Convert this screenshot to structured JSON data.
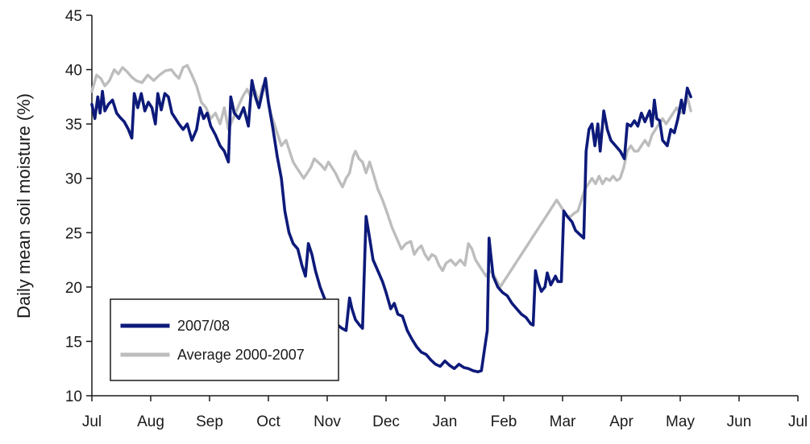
{
  "chart_data": {
    "type": "line",
    "title": "",
    "xlabel": "",
    "ylabel": "Daily mean soil moisture (%)",
    "ylim": [
      10,
      45
    ],
    "yticks": [
      10,
      15,
      20,
      25,
      30,
      35,
      40,
      45
    ],
    "xlim": [
      0,
      12
    ],
    "month_ticks": [
      "Jul",
      "Aug",
      "Sep",
      "Oct",
      "Nov",
      "Dec",
      "Jan",
      "Feb",
      "Mar",
      "Apr",
      "May",
      "Jun",
      "Jul"
    ],
    "grid": false,
    "legend_position": "bottom-left",
    "series": [
      {
        "name": "2007/08",
        "color": "#0d1a7a",
        "points": [
          [
            0.0,
            36.8
          ],
          [
            0.05,
            35.5
          ],
          [
            0.1,
            37.5
          ],
          [
            0.14,
            36.0
          ],
          [
            0.18,
            38.0
          ],
          [
            0.22,
            36.2
          ],
          [
            0.28,
            36.8
          ],
          [
            0.35,
            37.2
          ],
          [
            0.42,
            36.0
          ],
          [
            0.48,
            35.6
          ],
          [
            0.55,
            35.2
          ],
          [
            0.62,
            34.5
          ],
          [
            0.68,
            33.7
          ],
          [
            0.72,
            37.8
          ],
          [
            0.78,
            36.5
          ],
          [
            0.84,
            37.8
          ],
          [
            0.9,
            36.2
          ],
          [
            0.96,
            37.0
          ],
          [
            1.02,
            36.5
          ],
          [
            1.08,
            35.0
          ],
          [
            1.12,
            37.8
          ],
          [
            1.18,
            36.3
          ],
          [
            1.24,
            37.8
          ],
          [
            1.3,
            37.5
          ],
          [
            1.36,
            36.0
          ],
          [
            1.42,
            35.5
          ],
          [
            1.48,
            35.0
          ],
          [
            1.55,
            34.5
          ],
          [
            1.62,
            35.0
          ],
          [
            1.7,
            33.5
          ],
          [
            1.78,
            34.5
          ],
          [
            1.84,
            36.5
          ],
          [
            1.9,
            35.5
          ],
          [
            1.96,
            36.0
          ],
          [
            2.02,
            34.8
          ],
          [
            2.1,
            34.0
          ],
          [
            2.18,
            33.0
          ],
          [
            2.25,
            32.5
          ],
          [
            2.32,
            31.5
          ],
          [
            2.36,
            37.5
          ],
          [
            2.42,
            36.0
          ],
          [
            2.5,
            35.5
          ],
          [
            2.58,
            36.5
          ],
          [
            2.66,
            34.8
          ],
          [
            2.72,
            39.0
          ],
          [
            2.78,
            37.5
          ],
          [
            2.84,
            36.5
          ],
          [
            2.9,
            38.0
          ],
          [
            2.95,
            39.2
          ],
          [
            3.0,
            37.0
          ],
          [
            3.08,
            34.5
          ],
          [
            3.15,
            32.0
          ],
          [
            3.22,
            30.0
          ],
          [
            3.28,
            27.0
          ],
          [
            3.35,
            25.0
          ],
          [
            3.42,
            24.0
          ],
          [
            3.5,
            23.5
          ],
          [
            3.57,
            22.0
          ],
          [
            3.63,
            21.0
          ],
          [
            3.68,
            24.0
          ],
          [
            3.74,
            23.0
          ],
          [
            3.8,
            21.5
          ],
          [
            3.88,
            20.0
          ],
          [
            3.95,
            19.0
          ],
          [
            4.02,
            18.0
          ],
          [
            4.1,
            17.2
          ],
          [
            4.18,
            16.5
          ],
          [
            4.25,
            16.2
          ],
          [
            4.32,
            16.0
          ],
          [
            4.38,
            19.0
          ],
          [
            4.42,
            18.0
          ],
          [
            4.48,
            17.0
          ],
          [
            4.55,
            16.5
          ],
          [
            4.6,
            16.2
          ],
          [
            4.66,
            26.5
          ],
          [
            4.72,
            24.5
          ],
          [
            4.78,
            22.5
          ],
          [
            4.86,
            21.5
          ],
          [
            4.94,
            20.5
          ],
          [
            5.0,
            19.5
          ],
          [
            5.08,
            18.0
          ],
          [
            5.14,
            18.5
          ],
          [
            5.2,
            17.5
          ],
          [
            5.28,
            17.3
          ],
          [
            5.36,
            16.0
          ],
          [
            5.44,
            15.2
          ],
          [
            5.52,
            14.5
          ],
          [
            5.6,
            14.0
          ],
          [
            5.68,
            13.8
          ],
          [
            5.76,
            13.3
          ],
          [
            5.84,
            12.9
          ],
          [
            5.92,
            12.7
          ],
          [
            6.0,
            13.2
          ],
          [
            6.08,
            12.8
          ],
          [
            6.16,
            12.5
          ],
          [
            6.24,
            12.9
          ],
          [
            6.32,
            12.6
          ],
          [
            6.4,
            12.5
          ],
          [
            6.48,
            12.3
          ],
          [
            6.56,
            12.2
          ],
          [
            6.62,
            12.3
          ],
          [
            6.68,
            14.5
          ],
          [
            6.72,
            16.0
          ],
          [
            6.75,
            24.5
          ],
          [
            6.78,
            23.0
          ],
          [
            6.82,
            21.0
          ],
          [
            6.9,
            20.0
          ],
          [
            6.98,
            19.5
          ],
          [
            7.06,
            19.2
          ],
          [
            7.14,
            18.5
          ],
          [
            7.22,
            18.0
          ],
          [
            7.3,
            17.5
          ],
          [
            7.38,
            17.2
          ],
          [
            7.46,
            16.6
          ],
          [
            7.5,
            16.5
          ],
          [
            7.54,
            21.5
          ],
          [
            7.58,
            20.5
          ],
          [
            7.64,
            19.6
          ],
          [
            7.7,
            20.0
          ],
          [
            7.74,
            21.3
          ],
          [
            7.8,
            20.2
          ],
          [
            7.88,
            21.0
          ],
          [
            7.92,
            20.5
          ],
          [
            7.98,
            20.5
          ],
          [
            8.02,
            27.0
          ],
          [
            8.08,
            26.5
          ],
          [
            8.16,
            26.0
          ],
          [
            8.22,
            25.2
          ],
          [
            8.3,
            24.8
          ],
          [
            8.36,
            24.5
          ],
          [
            8.4,
            32.5
          ],
          [
            8.45,
            34.5
          ],
          [
            8.5,
            35.0
          ],
          [
            8.55,
            33.0
          ],
          [
            8.6,
            35.0
          ],
          [
            8.64,
            32.5
          ],
          [
            8.7,
            36.2
          ],
          [
            8.76,
            34.5
          ],
          [
            8.82,
            33.5
          ],
          [
            8.9,
            33.0
          ],
          [
            8.98,
            32.5
          ],
          [
            9.05,
            31.8
          ],
          [
            9.1,
            35.0
          ],
          [
            9.16,
            34.8
          ],
          [
            9.22,
            35.3
          ],
          [
            9.28,
            34.8
          ],
          [
            9.34,
            36.0
          ],
          [
            9.4,
            35.2
          ],
          [
            9.48,
            36.2
          ],
          [
            9.52,
            34.8
          ],
          [
            9.56,
            37.2
          ],
          [
            9.6,
            35.5
          ],
          [
            9.65,
            35.3
          ],
          [
            9.7,
            33.5
          ],
          [
            9.78,
            33.0
          ],
          [
            9.84,
            34.5
          ],
          [
            9.9,
            34.2
          ],
          [
            9.96,
            35.5
          ],
          [
            10.02,
            37.2
          ],
          [
            10.06,
            36.0
          ],
          [
            10.12,
            38.3
          ],
          [
            10.18,
            37.5
          ]
        ]
      },
      {
        "name": "Average 2000-2007",
        "color": "#bdbdbd",
        "points": [
          [
            0.0,
            38.0
          ],
          [
            0.08,
            39.5
          ],
          [
            0.15,
            39.2
          ],
          [
            0.22,
            38.5
          ],
          [
            0.3,
            39.0
          ],
          [
            0.38,
            40.0
          ],
          [
            0.45,
            39.6
          ],
          [
            0.52,
            40.2
          ],
          [
            0.6,
            39.8
          ],
          [
            0.68,
            39.3
          ],
          [
            0.75,
            39.0
          ],
          [
            0.85,
            38.8
          ],
          [
            0.95,
            39.5
          ],
          [
            1.05,
            39.0
          ],
          [
            1.15,
            39.5
          ],
          [
            1.25,
            39.9
          ],
          [
            1.35,
            40.0
          ],
          [
            1.42,
            39.5
          ],
          [
            1.48,
            39.2
          ],
          [
            1.55,
            40.2
          ],
          [
            1.62,
            40.4
          ],
          [
            1.7,
            39.5
          ],
          [
            1.78,
            38.5
          ],
          [
            1.86,
            37.0
          ],
          [
            1.94,
            36.5
          ],
          [
            2.02,
            35.5
          ],
          [
            2.1,
            36.0
          ],
          [
            2.18,
            35.0
          ],
          [
            2.25,
            36.5
          ],
          [
            2.32,
            34.5
          ],
          [
            2.4,
            35.5
          ],
          [
            2.48,
            36.5
          ],
          [
            2.56,
            37.5
          ],
          [
            2.64,
            38.2
          ],
          [
            2.7,
            37.5
          ],
          [
            2.78,
            38.0
          ],
          [
            2.84,
            37.0
          ],
          [
            2.9,
            38.5
          ],
          [
            2.96,
            38.0
          ],
          [
            3.04,
            36.0
          ],
          [
            3.1,
            35.0
          ],
          [
            3.16,
            34.0
          ],
          [
            3.22,
            33.0
          ],
          [
            3.3,
            33.5
          ],
          [
            3.36,
            32.5
          ],
          [
            3.42,
            31.5
          ],
          [
            3.48,
            31.0
          ],
          [
            3.54,
            30.5
          ],
          [
            3.6,
            30.0
          ],
          [
            3.66,
            30.5
          ],
          [
            3.72,
            31.0
          ],
          [
            3.78,
            31.8
          ],
          [
            3.84,
            31.5
          ],
          [
            3.9,
            31.2
          ],
          [
            3.96,
            30.8
          ],
          [
            4.02,
            31.5
          ],
          [
            4.08,
            31.0
          ],
          [
            4.14,
            30.5
          ],
          [
            4.2,
            29.8
          ],
          [
            4.26,
            29.2
          ],
          [
            4.32,
            30.0
          ],
          [
            4.38,
            30.5
          ],
          [
            4.44,
            32.0
          ],
          [
            4.48,
            32.5
          ],
          [
            4.54,
            31.8
          ],
          [
            4.6,
            31.5
          ],
          [
            4.66,
            30.5
          ],
          [
            4.72,
            31.5
          ],
          [
            4.78,
            30.5
          ],
          [
            4.86,
            29.0
          ],
          [
            4.94,
            28.0
          ],
          [
            5.02,
            26.8
          ],
          [
            5.1,
            25.5
          ],
          [
            5.18,
            24.5
          ],
          [
            5.26,
            23.5
          ],
          [
            5.34,
            24.0
          ],
          [
            5.42,
            24.2
          ],
          [
            5.48,
            23.0
          ],
          [
            5.54,
            23.5
          ],
          [
            5.6,
            23.8
          ],
          [
            5.66,
            23.0
          ],
          [
            5.72,
            22.5
          ],
          [
            5.78,
            23.0
          ],
          [
            5.84,
            22.8
          ],
          [
            5.9,
            22.0
          ],
          [
            5.96,
            21.5
          ],
          [
            6.02,
            22.2
          ],
          [
            6.1,
            22.5
          ],
          [
            6.18,
            22.0
          ],
          [
            6.26,
            22.5
          ],
          [
            6.34,
            22.0
          ],
          [
            6.4,
            24.0
          ],
          [
            6.46,
            23.5
          ],
          [
            6.52,
            22.5
          ],
          [
            6.58,
            22.0
          ],
          [
            6.64,
            21.5
          ],
          [
            6.7,
            21.0
          ],
          [
            6.76,
            21.5
          ],
          [
            6.82,
            21.2
          ],
          [
            6.88,
            20.6
          ],
          [
            6.94,
            20.0
          ],
          [
            7.0,
            20.5
          ],
          [
            7.06,
            21.0
          ],
          [
            7.12,
            21.5
          ],
          [
            7.18,
            22.0
          ],
          [
            7.24,
            22.5
          ],
          [
            7.3,
            23.0
          ],
          [
            7.36,
            23.5
          ],
          [
            7.42,
            24.0
          ],
          [
            7.48,
            24.5
          ],
          [
            7.54,
            25.0
          ],
          [
            7.6,
            25.5
          ],
          [
            7.66,
            26.0
          ],
          [
            7.72,
            26.5
          ],
          [
            7.78,
            27.0
          ],
          [
            7.84,
            27.5
          ],
          [
            7.9,
            28.0
          ],
          [
            7.96,
            27.5
          ],
          [
            8.02,
            27.0
          ],
          [
            8.08,
            26.5
          ],
          [
            8.14,
            26.5
          ],
          [
            8.2,
            26.8
          ],
          [
            8.26,
            27.0
          ],
          [
            8.32,
            28.0
          ],
          [
            8.38,
            29.0
          ],
          [
            8.44,
            29.5
          ],
          [
            8.5,
            30.0
          ],
          [
            8.56,
            29.5
          ],
          [
            8.62,
            30.2
          ],
          [
            8.68,
            29.5
          ],
          [
            8.74,
            30.0
          ],
          [
            8.8,
            29.8
          ],
          [
            8.86,
            30.2
          ],
          [
            8.92,
            29.8
          ],
          [
            8.98,
            30.0
          ],
          [
            9.04,
            31.0
          ],
          [
            9.1,
            32.5
          ],
          [
            9.16,
            33.0
          ],
          [
            9.22,
            32.5
          ],
          [
            9.28,
            32.5
          ],
          [
            9.34,
            33.0
          ],
          [
            9.4,
            33.5
          ],
          [
            9.46,
            33.0
          ],
          [
            9.52,
            34.0
          ],
          [
            9.58,
            34.5
          ],
          [
            9.64,
            35.0
          ],
          [
            9.7,
            35.5
          ],
          [
            9.76,
            35.0
          ],
          [
            9.82,
            35.5
          ],
          [
            9.88,
            36.0
          ],
          [
            9.94,
            36.5
          ],
          [
            10.0,
            36.0
          ],
          [
            10.06,
            36.2
          ],
          [
            10.12,
            37.5
          ],
          [
            10.18,
            36.2
          ]
        ]
      }
    ]
  }
}
